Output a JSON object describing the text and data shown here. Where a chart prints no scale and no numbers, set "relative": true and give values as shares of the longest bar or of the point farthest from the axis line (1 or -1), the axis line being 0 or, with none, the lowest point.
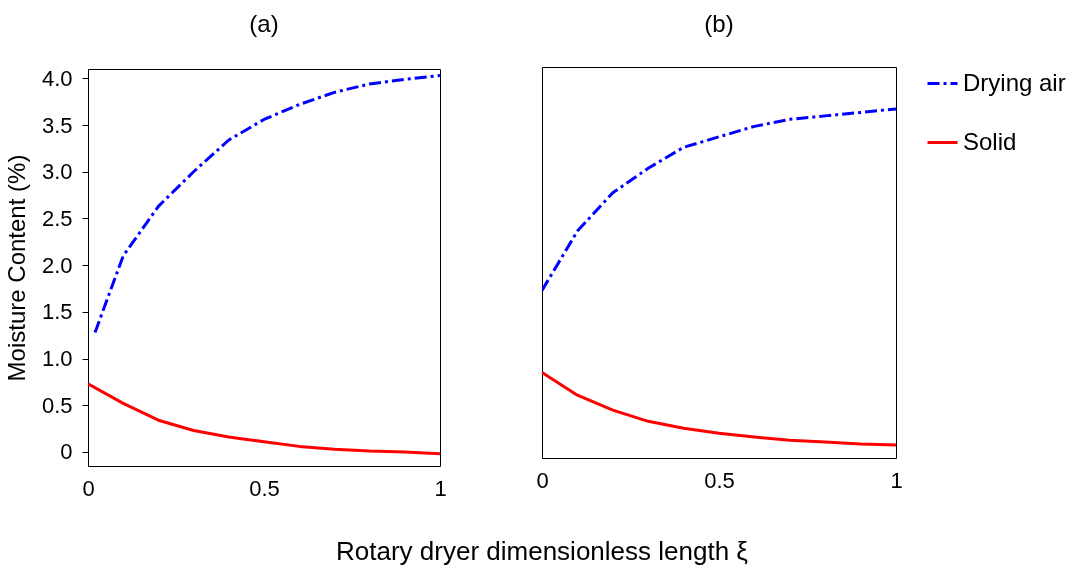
{
  "chart_data": [
    {
      "type": "line",
      "title": "(a)",
      "xlabel": "Rotary dryer dimensionless length ξ",
      "ylabel": "Moisture Content (%)",
      "xlim": [
        0,
        1
      ],
      "xticks": [
        0,
        0.5,
        1
      ],
      "ylim": [
        -0.15,
        4.1
      ],
      "yticks": [
        0,
        0.5,
        {
          "value": 1,
          "label": "1.0"
        },
        1.5,
        {
          "value": 2,
          "label": "2.0"
        },
        2.5,
        {
          "value": 3,
          "label": "3.0"
        },
        3.5,
        {
          "value": 4,
          "label": "4.0"
        }
      ],
      "grid": false,
      "legend": false,
      "marker": "none",
      "series": [
        {
          "color": "#0000ff",
          "line_style": "dashed",
          "x": [
            0.02,
            0.1,
            0.2,
            0.3,
            0.4,
            0.5,
            0.6,
            0.7,
            0.8,
            0.9,
            1
          ],
          "values": [
            1.28,
            2.1,
            2.63,
            3.0,
            3.34,
            3.56,
            3.72,
            3.85,
            3.94,
            3.99,
            4.03
          ]
        },
        {
          "color": "#ff0000",
          "line_style": "solid",
          "x": [
            0,
            0.1,
            0.2,
            0.3,
            0.4,
            0.5,
            0.6,
            0.7,
            0.8,
            0.9,
            1
          ],
          "values": [
            0.73,
            0.52,
            0.34,
            0.23,
            0.16,
            0.11,
            0.06,
            0.03,
            0.01,
            0.0,
            -0.02
          ]
        }
      ]
    },
    {
      "type": "line",
      "title": "(b)",
      "relative": true,
      "xlim": [
        0,
        1
      ],
      "xticks": [
        0,
        0.5,
        1
      ],
      "tick_labels": "x",
      "grid": false,
      "legend": "right",
      "marker": "none",
      "series": [
        {
          "name": "Drying air",
          "color": "#0000ff",
          "line_style": "dashed",
          "x": [
            0,
            0.1,
            0.2,
            0.3,
            0.4,
            0.5,
            0.6,
            0.7,
            0.8,
            0.9,
            1
          ],
          "values": [
            0.48,
            0.65,
            0.76,
            0.83,
            0.89,
            0.92,
            0.95,
            0.97,
            0.98,
            0.99,
            1
          ]
        },
        {
          "name": "Solid",
          "color": "#ff0000",
          "line_style": "solid",
          "x": [
            0,
            0.1,
            0.2,
            0.3,
            0.4,
            0.5,
            0.6,
            0.7,
            0.8,
            0.9,
            1
          ],
          "values": [
            0.245,
            0.18,
            0.137,
            0.105,
            0.085,
            0.071,
            0.06,
            0.051,
            0.046,
            0.04,
            0.037
          ]
        }
      ]
    }
  ]
}
